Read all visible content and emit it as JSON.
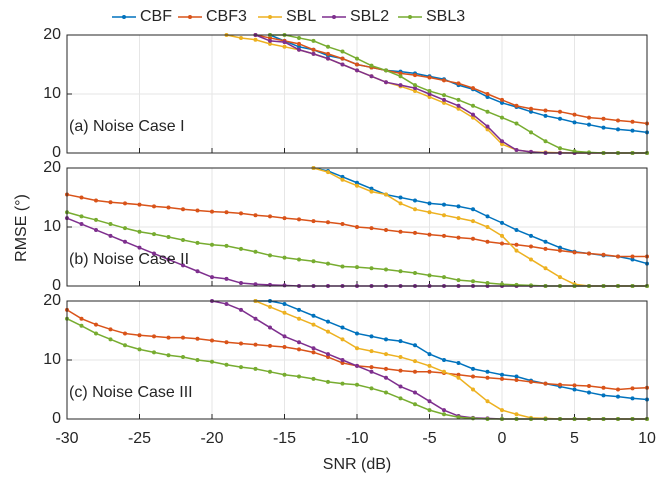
{
  "chart_data": [
    {
      "type": "line",
      "annotation": "(a) Noise Case I",
      "grid": true,
      "xlim": [
        -30,
        10
      ],
      "xticks": [
        -30,
        -25,
        -20,
        -15,
        -10,
        -5,
        0,
        5,
        10
      ],
      "ylim": [
        0,
        20
      ],
      "yticks": [
        0,
        10,
        20
      ],
      "x": [
        -30,
        -29,
        -28,
        -27,
        -26,
        -25,
        -24,
        -23,
        -22,
        -21,
        -20,
        -19,
        -18,
        -17,
        -16,
        -15,
        -14,
        -13,
        -12,
        -11,
        -10,
        -9,
        -8,
        -7,
        -6,
        -5,
        -4,
        -3,
        -2,
        -1,
        0,
        1,
        2,
        3,
        4,
        5,
        6,
        7,
        8,
        9,
        10
      ],
      "series": [
        {
          "name": "CBF",
          "color": "#0072BD",
          "values": [
            null,
            null,
            null,
            null,
            null,
            null,
            null,
            null,
            null,
            null,
            null,
            null,
            null,
            null,
            20,
            19,
            18,
            17.5,
            16.5,
            16,
            15,
            14.5,
            14,
            13.8,
            13.5,
            13,
            12.5,
            11.5,
            10.8,
            9.5,
            8.5,
            7.8,
            7,
            6.3,
            5.8,
            5.2,
            4.8,
            4.3,
            4,
            3.8,
            3.5
          ]
        },
        {
          "name": "CBF3",
          "color": "#D95319",
          "values": [
            null,
            null,
            null,
            null,
            null,
            null,
            null,
            null,
            null,
            null,
            null,
            null,
            null,
            20,
            19.5,
            19,
            18.5,
            17.5,
            16.8,
            16,
            15,
            14.5,
            14,
            13.5,
            13.2,
            12.8,
            12.3,
            11.8,
            11,
            10,
            9,
            8,
            7.5,
            7.2,
            7,
            6.5,
            6,
            5.8,
            5.5,
            5.3,
            5
          ]
        },
        {
          "name": "SBL",
          "color": "#EDB120",
          "values": [
            null,
            null,
            null,
            null,
            null,
            null,
            null,
            null,
            null,
            null,
            null,
            20,
            19.5,
            19.2,
            18.5,
            18,
            17.5,
            16.8,
            16,
            15,
            14,
            13,
            12,
            11.3,
            10.5,
            9.5,
            8.5,
            7.5,
            6,
            4,
            1.5,
            0.5,
            0.2,
            0.1,
            0.05,
            0,
            0,
            0,
            0,
            0,
            0
          ]
        },
        {
          "name": "SBL2",
          "color": "#7E2F8E",
          "values": [
            null,
            null,
            null,
            null,
            null,
            null,
            null,
            null,
            null,
            null,
            null,
            null,
            null,
            20,
            19,
            18.8,
            17.5,
            16.8,
            16,
            15,
            14,
            13,
            12,
            11.5,
            11,
            10,
            9,
            8,
            6.5,
            4.5,
            2,
            0.5,
            0.2,
            0,
            0,
            0,
            0,
            0,
            0,
            0,
            0
          ]
        },
        {
          "name": "SBL3",
          "color": "#77AC30",
          "values": [
            null,
            null,
            null,
            null,
            null,
            null,
            null,
            null,
            null,
            null,
            null,
            null,
            null,
            null,
            20,
            20,
            19.5,
            19,
            18,
            17.2,
            16,
            14.8,
            14,
            13,
            11.5,
            10.5,
            9.8,
            9,
            8,
            7,
            6,
            5,
            3.5,
            2,
            0.8,
            0.3,
            0.1,
            0,
            0,
            0,
            0
          ]
        }
      ]
    },
    {
      "type": "line",
      "annotation": "(b) Noise Case II",
      "ylabel": "RMSE (°)",
      "grid": true,
      "xlim": [
        -30,
        10
      ],
      "xticks": [
        -30,
        -25,
        -20,
        -15,
        -10,
        -5,
        0,
        5,
        10
      ],
      "ylim": [
        0,
        20
      ],
      "yticks": [
        0,
        10,
        20
      ],
      "x": [
        -30,
        -29,
        -28,
        -27,
        -26,
        -25,
        -24,
        -23,
        -22,
        -21,
        -20,
        -19,
        -18,
        -17,
        -16,
        -15,
        -14,
        -13,
        -12,
        -11,
        -10,
        -9,
        -8,
        -7,
        -6,
        -5,
        -4,
        -3,
        -2,
        -1,
        0,
        1,
        2,
        3,
        4,
        5,
        6,
        7,
        8,
        9,
        10
      ],
      "series": [
        {
          "color": "#0072BD",
          "values": [
            null,
            null,
            null,
            null,
            null,
            null,
            null,
            null,
            null,
            null,
            null,
            null,
            null,
            null,
            null,
            null,
            null,
            20,
            19.5,
            18.5,
            17.5,
            16.5,
            15.5,
            15,
            14.5,
            14,
            13.8,
            13.5,
            13,
            11.8,
            10.7,
            9.5,
            8.5,
            7.5,
            6.5,
            5.8,
            5.5,
            5.2,
            5,
            4.5,
            3.8
          ]
        },
        {
          "color": "#D95319",
          "values": [
            15.5,
            15,
            14.5,
            14.2,
            14,
            13.8,
            13.5,
            13.3,
            13,
            12.8,
            12.6,
            12.5,
            12.3,
            12,
            11.8,
            11.5,
            11.3,
            11,
            10.8,
            10.5,
            10,
            9.8,
            9.5,
            9.2,
            9,
            8.7,
            8.5,
            8.2,
            8,
            7.5,
            7.2,
            7,
            6.7,
            6.3,
            6,
            5.7,
            5.5,
            5.3,
            5,
            5,
            5
          ]
        },
        {
          "color": "#EDB120",
          "values": [
            null,
            null,
            null,
            null,
            null,
            null,
            null,
            null,
            null,
            null,
            null,
            null,
            null,
            null,
            null,
            null,
            null,
            20,
            19.3,
            18,
            17,
            16,
            15.5,
            14,
            13,
            12.5,
            12,
            11.5,
            11,
            10,
            8.5,
            6,
            4.5,
            3,
            1.5,
            0.3,
            0,
            0,
            0,
            0,
            0
          ]
        },
        {
          "color": "#7E2F8E",
          "values": [
            11.5,
            10.5,
            9.5,
            8.5,
            7.5,
            6.5,
            5.5,
            4.5,
            3.5,
            2.5,
            1.5,
            1.2,
            0.5,
            0.3,
            0.2,
            0.1,
            0,
            0,
            0,
            0,
            0,
            0,
            0,
            0,
            0,
            0,
            0,
            0,
            0,
            0,
            0,
            0,
            0,
            0,
            0,
            0,
            0,
            0,
            0,
            0,
            0
          ]
        },
        {
          "color": "#77AC30",
          "values": [
            12.5,
            11.8,
            11.2,
            10.5,
            9.8,
            9.2,
            8.8,
            8.3,
            7.8,
            7.3,
            7,
            6.8,
            6.3,
            5.8,
            5.2,
            4.8,
            4.5,
            4.2,
            3.8,
            3.3,
            3.2,
            3,
            2.8,
            2.5,
            2.2,
            1.8,
            1.5,
            1,
            0.8,
            0.5,
            0.3,
            0.2,
            0.1,
            0,
            0,
            0,
            0,
            0,
            0,
            0,
            0
          ]
        }
      ]
    },
    {
      "type": "line",
      "annotation": "(c) Noise Case III",
      "xlabel": "SNR (dB)",
      "grid": true,
      "xlim": [
        -30,
        10
      ],
      "xticks": [
        -30,
        -25,
        -20,
        -15,
        -10,
        -5,
        0,
        5,
        10
      ],
      "ylim": [
        0,
        20
      ],
      "yticks": [
        0,
        10,
        20
      ],
      "x": [
        -30,
        -29,
        -28,
        -27,
        -26,
        -25,
        -24,
        -23,
        -22,
        -21,
        -20,
        -19,
        -18,
        -17,
        -16,
        -15,
        -14,
        -13,
        -12,
        -11,
        -10,
        -9,
        -8,
        -7,
        -6,
        -5,
        -4,
        -3,
        -2,
        -1,
        0,
        1,
        2,
        3,
        4,
        5,
        6,
        7,
        8,
        9,
        10
      ],
      "series": [
        {
          "color": "#0072BD",
          "values": [
            null,
            null,
            null,
            null,
            null,
            null,
            null,
            null,
            null,
            null,
            null,
            null,
            null,
            20,
            20,
            19.5,
            18.5,
            17.5,
            16.5,
            15.5,
            14.5,
            14,
            13.5,
            13.2,
            12.5,
            11,
            10,
            9.5,
            8.5,
            8,
            7.5,
            7.2,
            6.5,
            6,
            5.5,
            5,
            4.5,
            4,
            3.8,
            3.5,
            3.3
          ]
        },
        {
          "color": "#D95319",
          "values": [
            18.5,
            17,
            16,
            15.2,
            14.5,
            14.2,
            14,
            13.8,
            13.8,
            13.6,
            13.3,
            13,
            12.8,
            12.6,
            12.4,
            12.2,
            11.8,
            11.3,
            10.5,
            9.5,
            9,
            8.8,
            8.5,
            8.2,
            8,
            8,
            7.8,
            7.5,
            7.2,
            7,
            6.8,
            6.6,
            6.3,
            6,
            5.8,
            5.7,
            5.6,
            5.3,
            5,
            5.2,
            5.3
          ]
        },
        {
          "color": "#EDB120",
          "values": [
            null,
            null,
            null,
            null,
            null,
            null,
            null,
            null,
            null,
            null,
            null,
            null,
            null,
            20,
            19,
            18,
            17,
            16,
            14.8,
            13.5,
            12,
            11.5,
            11,
            10.5,
            9.8,
            9,
            8,
            7,
            5,
            3,
            1.5,
            0.8,
            0.2,
            0.1,
            0,
            0,
            0,
            0,
            0,
            0,
            0
          ]
        },
        {
          "color": "#7E2F8E",
          "values": [
            null,
            null,
            null,
            null,
            null,
            null,
            null,
            null,
            null,
            null,
            20,
            19.5,
            18.5,
            17,
            15.5,
            14,
            13,
            12,
            11,
            10,
            9,
            8,
            7,
            5.5,
            4.5,
            3,
            1.5,
            0.5,
            0.2,
            0.1,
            0,
            0,
            0,
            0,
            0,
            0,
            0,
            0,
            0,
            0,
            0
          ]
        },
        {
          "color": "#77AC30",
          "values": [
            17,
            15.8,
            14.5,
            13.5,
            12.5,
            11.8,
            11.3,
            10.8,
            10.5,
            10,
            9.7,
            9.2,
            8.8,
            8.5,
            8,
            7.5,
            7.2,
            6.8,
            6.3,
            6,
            5.8,
            5.2,
            4.5,
            3.5,
            2.5,
            1.5,
            0.8,
            0.3,
            0.1,
            0,
            0,
            0,
            0,
            0,
            0,
            0,
            0,
            0,
            0,
            0,
            0
          ]
        }
      ]
    }
  ]
}
